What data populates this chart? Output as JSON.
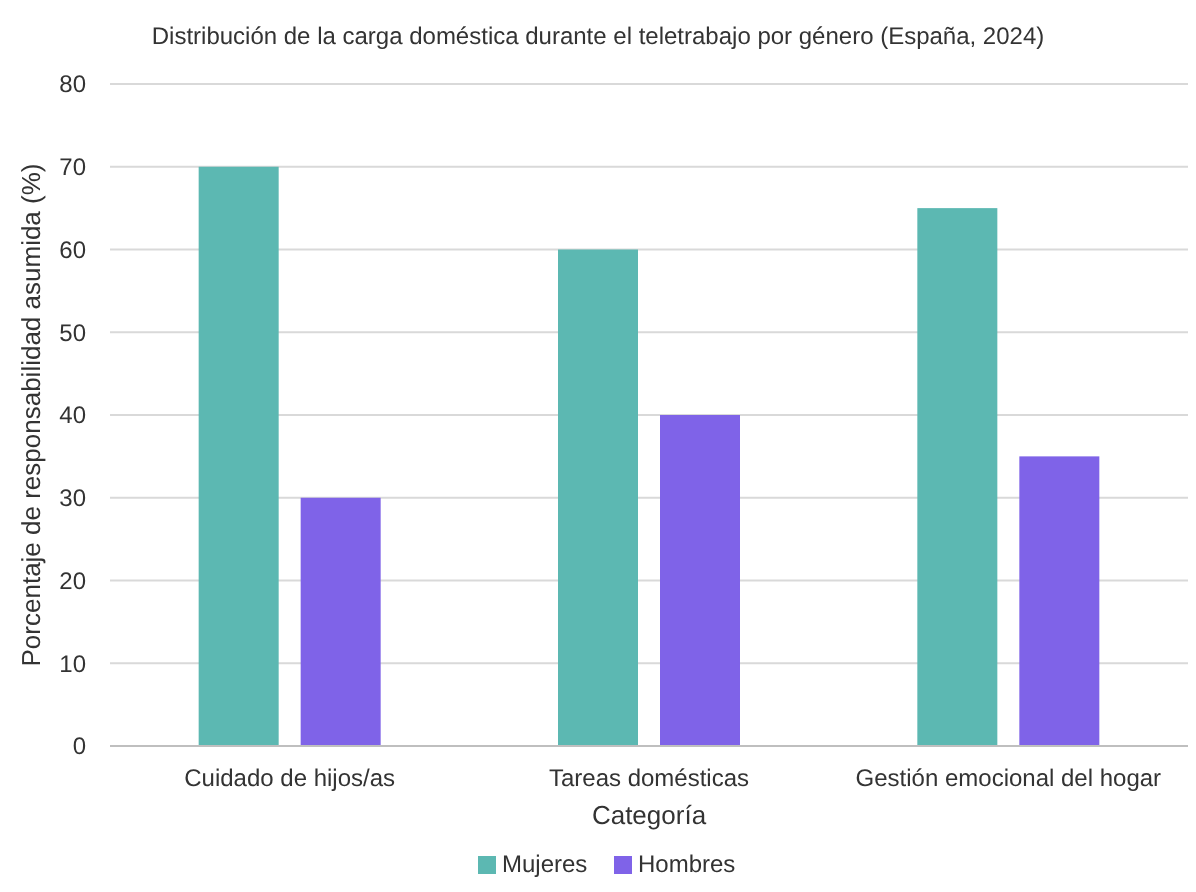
{
  "chart_data": {
    "type": "bar",
    "title": "Distribución de la carga doméstica durante el teletrabajo por género (España, 2024)",
    "xlabel": "Categoría",
    "ylabel": "Porcentaje de responsabilidad asumida (%)",
    "categories": [
      "Cuidado de hijos/as",
      "Tareas domésticas",
      "Gestión emocional del hogar"
    ],
    "series": [
      {
        "name": "Mujeres",
        "color": "#5cb8b2",
        "values": [
          70,
          60,
          65
        ]
      },
      {
        "name": "Hombres",
        "color": "#7f63e8",
        "values": [
          30,
          40,
          35
        ]
      }
    ],
    "ylim": [
      0,
      80
    ],
    "yticks": [
      0,
      10,
      20,
      30,
      40,
      50,
      60,
      70,
      80
    ],
    "grid": "y",
    "legend": "bottom"
  }
}
